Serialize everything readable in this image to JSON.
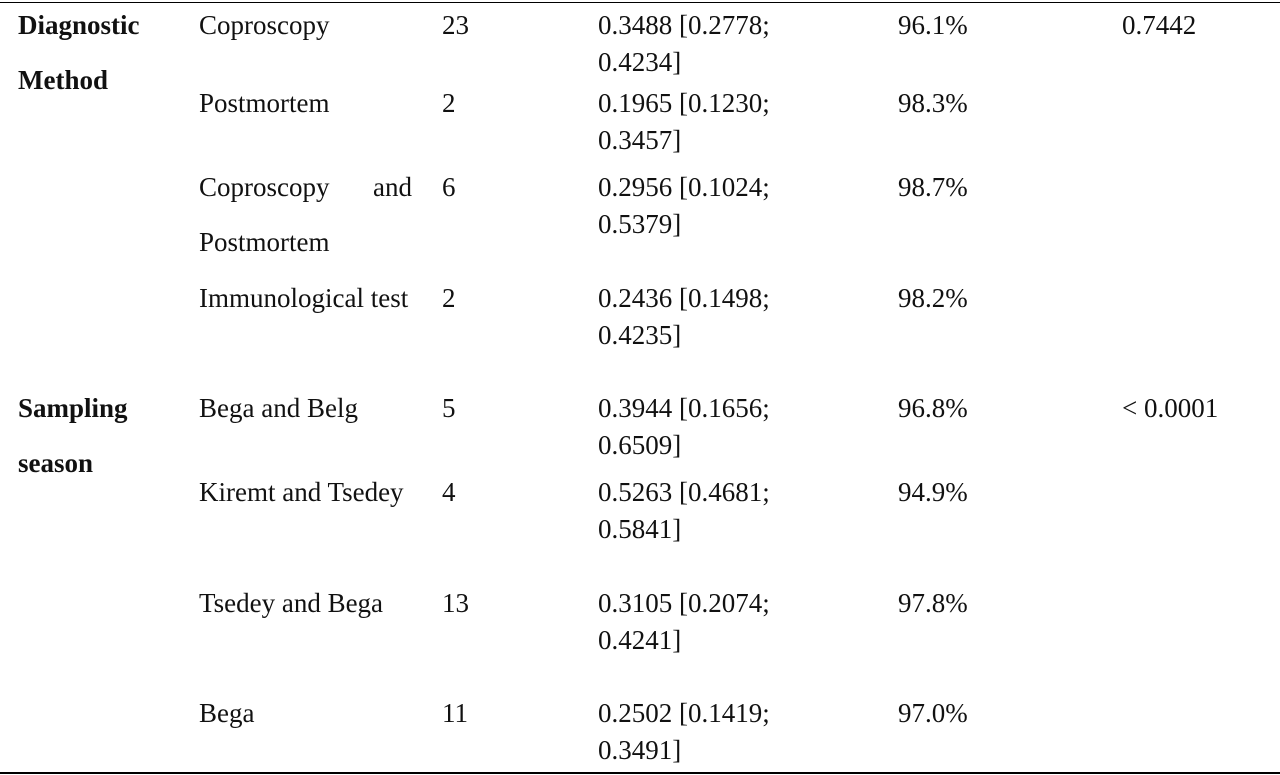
{
  "table": {
    "groups": [
      {
        "label": "Diagnostic Method",
        "p": "0.7442",
        "rows": [
          {
            "subgroup": "Coproscopy",
            "n": "23",
            "estimate": "0.3488 [0.2778; 0.4234]",
            "i2": "96.1%"
          },
          {
            "subgroup": "Postmortem",
            "n": "2",
            "estimate": "0.1965 [0.1230; 0.3457]",
            "i2": "98.3%"
          },
          {
            "subgroup": "Coproscopy and Postmortem",
            "n": "6",
            "estimate": "0.2956 [0.1024; 0.5379]",
            "i2": "98.7%"
          },
          {
            "subgroup": "Immunological test",
            "n": "2",
            "estimate": "0.2436 [0.1498; 0.4235]",
            "i2": "98.2%"
          }
        ]
      },
      {
        "label": "Sampling season",
        "p": "< 0.0001",
        "rows": [
          {
            "subgroup": "Bega and Belg",
            "n": "5",
            "estimate": "0.3944 [0.1656; 0.6509]",
            "i2": "96.8%"
          },
          {
            "subgroup": "Kiremt and Tsedey",
            "n": "4",
            "estimate": "0.5263 [0.4681; 0.5841]",
            "i2": "94.9%"
          },
          {
            "subgroup": "Tsedey and Bega",
            "n": "13",
            "estimate": "0.3105 [0.2074; 0.4241]",
            "i2": "97.8%"
          },
          {
            "subgroup": "Bega",
            "n": "11",
            "estimate": "0.2502 [0.1419; 0.3491]",
            "i2": "97.0%"
          }
        ]
      }
    ]
  }
}
